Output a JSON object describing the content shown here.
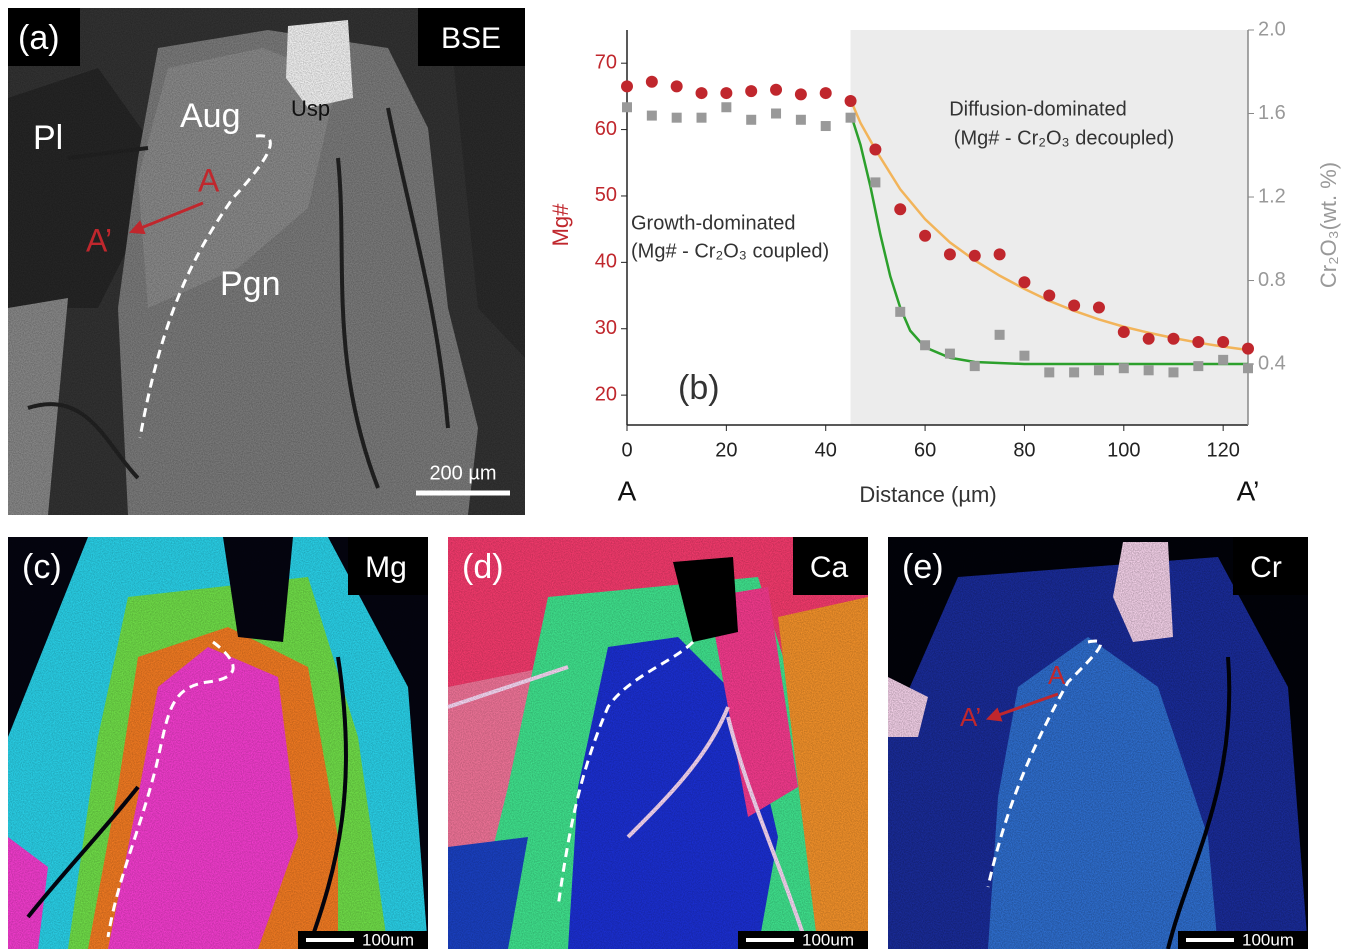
{
  "chart_data": {
    "type": "scatter",
    "x": [
      0,
      5,
      10,
      15,
      20,
      25,
      30,
      35,
      40,
      45,
      50,
      55,
      60,
      65,
      70,
      75,
      80,
      85,
      90,
      95,
      100,
      105,
      110,
      115,
      120,
      125
    ],
    "series": [
      {
        "color": "#c0272d",
        "marker": "circle",
        "values": [
          66.5,
          67.2,
          66.5,
          65.5,
          65.5,
          65.8,
          66,
          65.3,
          65.5,
          64.3,
          57,
          48,
          44,
          41.2,
          41,
          41.2,
          37,
          35,
          33.5,
          33.2,
          29.5,
          28.5,
          28.5,
          28,
          28,
          27
        ]
      },
      {
        "color": "#999999",
        "marker": "square",
        "axis": "y2",
        "values": [
          1.63,
          1.59,
          1.58,
          1.58,
          1.63,
          1.57,
          1.6,
          1.57,
          1.54,
          1.58,
          1.27,
          0.65,
          0.49,
          0.45,
          0.39,
          0.54,
          0.44,
          0.36,
          0.36,
          0.37,
          0.38,
          0.37,
          0.36,
          0.39,
          0.42,
          0.38
        ]
      },
      {
        "color": "#f2b45a",
        "marker": "line",
        "x": [
          45,
          47,
          50,
          55,
          60,
          65,
          70,
          75,
          80,
          85,
          90,
          95,
          100,
          105,
          110,
          115,
          120,
          125
        ],
        "values": [
          64.5,
          61,
          57,
          51,
          46.5,
          43,
          40.3,
          38,
          36,
          34.2,
          32.7,
          31.4,
          30.3,
          29.4,
          28.6,
          27.9,
          27.3,
          26.8
        ]
      },
      {
        "color": "#2ca02c",
        "marker": "line",
        "axis": "y2",
        "x": [
          45,
          47,
          49,
          51,
          53,
          55,
          57,
          60,
          65,
          70,
          80,
          100,
          125
        ],
        "values": [
          1.6,
          1.45,
          1.25,
          1.02,
          0.82,
          0.67,
          0.56,
          0.48,
          0.43,
          0.41,
          0.4,
          0.4,
          0.4
        ]
      }
    ],
    "xlim": [
      0,
      125
    ],
    "xticks": [
      0,
      20,
      40,
      60,
      80,
      100,
      120
    ],
    "ylim": [
      15.5,
      75
    ],
    "yticks": [
      20,
      30,
      40,
      50,
      60,
      70
    ],
    "y2lim": [
      0.108,
      2.0
    ],
    "y2ticks": [
      0.4,
      0.8,
      1.2,
      1.6,
      {
        "value": 2.0,
        "label": "2.0"
      }
    ],
    "ylabel": "Mg#",
    "y2label": "Cr₂O₃(wt. %)",
    "xlabel": "Distance (µm)",
    "ycolor": "#c0272d",
    "y2color": "#999999",
    "shaded_from": 45,
    "shade_color": "#ececec",
    "annotations": {
      "panel": "(b)",
      "start": "A",
      "end": "A’",
      "growth": "Growth-dominated",
      "growth_note": "(Mg# - Cr₂O₃ coupled)",
      "diffusion": "Diffusion-dominated",
      "diffusion_note": "(Mg# - Cr₂O₃ decoupled)"
    }
  },
  "panels": [
    {
      "label": "(a)",
      "tag": "BSE",
      "minerals": [
        "Pl",
        "Aug",
        "Usp",
        "Pgn"
      ],
      "points": [
        "A",
        "A’"
      ],
      "scale": "200 µm"
    },
    {
      "label": "(c)",
      "tag": "Mg",
      "scale": "100um"
    },
    {
      "label": "(d)",
      "tag": "Ca",
      "scale": "100um"
    },
    {
      "label": "(e)",
      "tag": "Cr",
      "points": [
        "A",
        "A’"
      ],
      "scale": "100um"
    }
  ]
}
